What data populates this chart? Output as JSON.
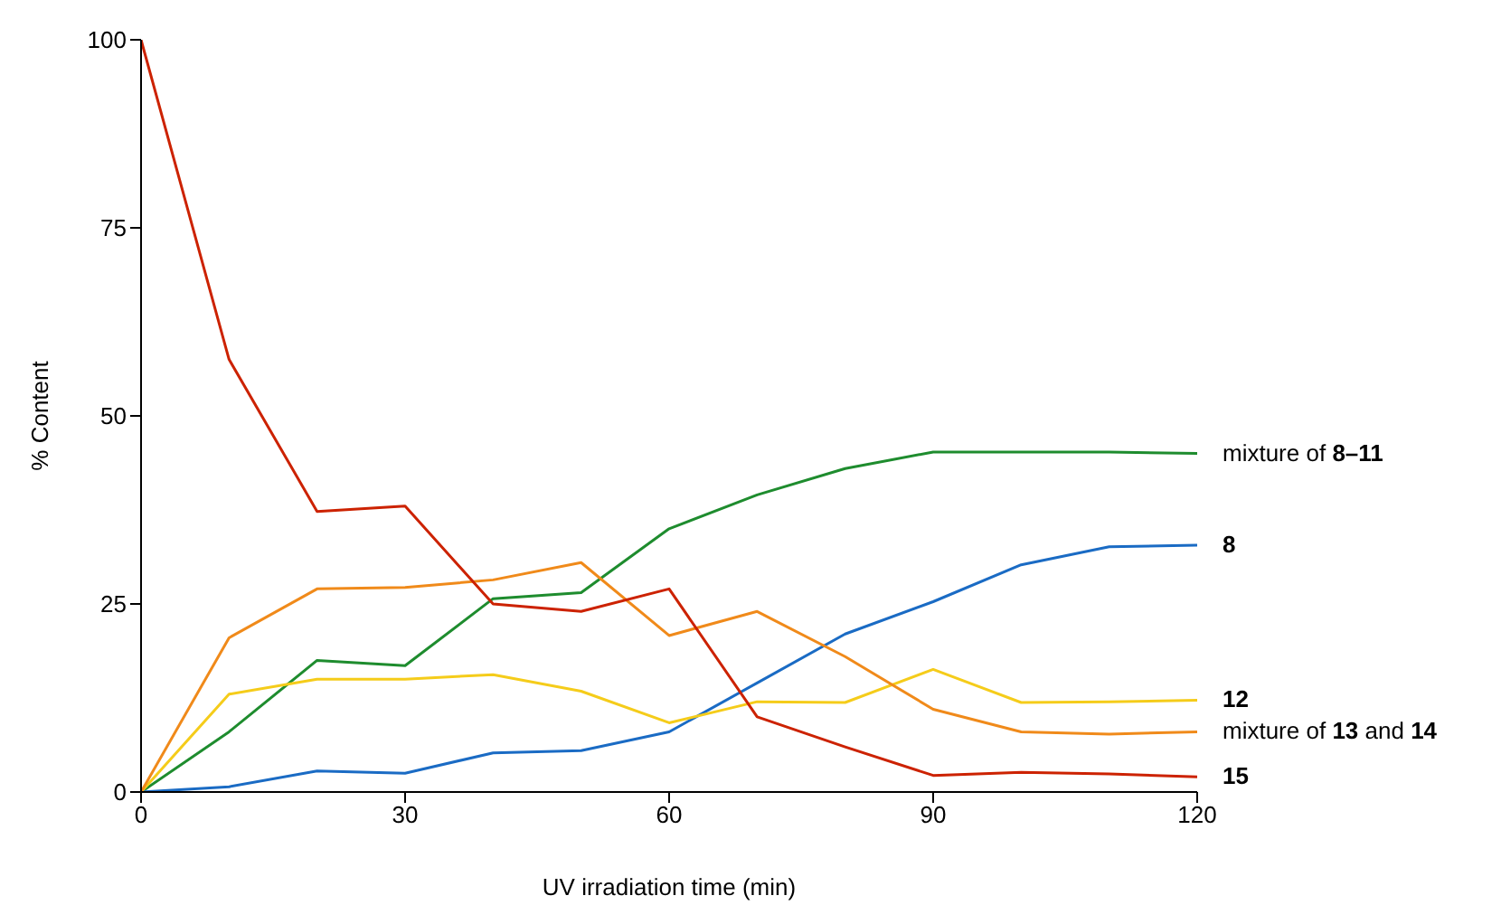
{
  "chart_data": {
    "type": "line",
    "xlabel": "UV irradiation time (min)",
    "ylabel": "% Content",
    "x": [
      0,
      10,
      20,
      30,
      40,
      50,
      60,
      70,
      80,
      90,
      100,
      110,
      120
    ],
    "xlim": [
      0,
      120
    ],
    "xticks": [
      0,
      30,
      60,
      90,
      120
    ],
    "ylim": [
      0,
      100
    ],
    "yticks": [
      0,
      25,
      50,
      75,
      100
    ],
    "grid": false,
    "legend": false,
    "marker": "none",
    "line_style": "solid",
    "series": [
      {
        "name": "mixture of 8–11",
        "color": "#1e8c2e",
        "values": [
          0,
          8,
          17.5,
          16.8,
          25.7,
          26.5,
          35,
          39.5,
          43,
          45.2,
          45.2,
          45.2,
          45
        ]
      },
      {
        "name": "8",
        "color": "#1a6bc4",
        "values": [
          0,
          0.7,
          2.8,
          2.5,
          5.2,
          5.5,
          8,
          14.5,
          21,
          25.3,
          30.2,
          32.6,
          32.8
        ]
      },
      {
        "name": "12",
        "color": "#f5cc1a",
        "values": [
          0,
          13,
          15,
          15,
          15.6,
          13.4,
          9.2,
          12,
          11.9,
          16.3,
          11.9,
          12,
          12.2
        ]
      },
      {
        "name": "mixture of 13 and 14",
        "color": "#f08a1a",
        "values": [
          0,
          20.5,
          27,
          27.2,
          28.2,
          30.5,
          20.8,
          24,
          18,
          11,
          8,
          7.7,
          8
        ]
      },
      {
        "name": "15",
        "color": "#cc2200",
        "values": [
          100,
          57.5,
          37.3,
          38,
          25,
          24,
          27,
          10,
          6,
          2.2,
          2.6,
          2.4,
          2
        ]
      }
    ]
  }
}
